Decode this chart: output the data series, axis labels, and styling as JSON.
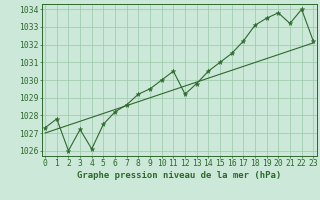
{
  "xlabel": "Graphe pression niveau de la mer (hPa)",
  "x_values": [
    0,
    1,
    2,
    3,
    4,
    5,
    6,
    7,
    8,
    9,
    10,
    11,
    12,
    13,
    14,
    15,
    16,
    17,
    18,
    19,
    20,
    21,
    22,
    23
  ],
  "pressure_values": [
    1027.3,
    1027.8,
    1026.0,
    1027.2,
    1026.1,
    1027.5,
    1028.2,
    1028.6,
    1029.2,
    1029.5,
    1030.0,
    1030.5,
    1029.2,
    1029.8,
    1030.5,
    1031.0,
    1031.5,
    1032.2,
    1033.1,
    1033.5,
    1033.8,
    1033.2,
    1034.0,
    1032.2
  ],
  "trend_x": [
    0,
    23
  ],
  "trend_y": [
    1027.0,
    1032.1
  ],
  "ylim": [
    1025.7,
    1034.3
  ],
  "yticks": [
    1026,
    1027,
    1028,
    1029,
    1030,
    1031,
    1032,
    1033,
    1034
  ],
  "xlim": [
    -0.3,
    23.3
  ],
  "line_color": "#2d6a2d",
  "bg_color": "#cce8d8",
  "grid_color": "#9ac8aa",
  "text_color": "#2d6a2d",
  "title_fontsize": 6.5,
  "tick_fontsize": 5.8
}
